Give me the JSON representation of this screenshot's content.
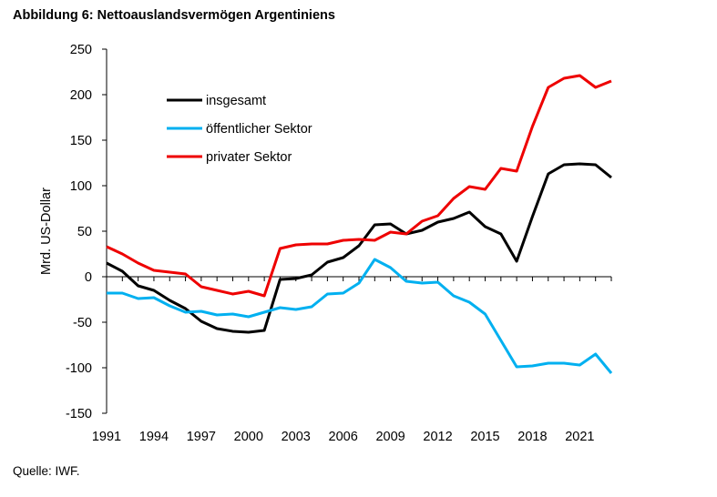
{
  "figure": {
    "title": "Abbildung 6: Nettoauslandsvermögen Argentiniens",
    "source": "Quelle: IWF."
  },
  "chart_data": {
    "type": "line",
    "title": "Abbildung 6: Nettoauslandsvermögen Argentiniens",
    "xlabel": "",
    "ylabel": "Mrd. US-Dollar",
    "xlim": [
      1991,
      2023
    ],
    "ylim": [
      -150,
      250
    ],
    "yticks": [
      -150,
      -100,
      -50,
      0,
      50,
      100,
      150,
      200,
      250
    ],
    "xticks": [
      1991,
      1994,
      1997,
      2000,
      2003,
      2006,
      2009,
      2012,
      2015,
      2018,
      2021
    ],
    "grid": false,
    "legend": "top-left",
    "x": [
      1991,
      1992,
      1993,
      1994,
      1995,
      1996,
      1997,
      1998,
      1999,
      2000,
      2001,
      2002,
      2003,
      2004,
      2005,
      2006,
      2007,
      2008,
      2009,
      2010,
      2011,
      2012,
      2013,
      2014,
      2015,
      2016,
      2017,
      2018,
      2019,
      2020,
      2021,
      2022,
      2023
    ],
    "series": [
      {
        "name": "insgesamt",
        "color": "#000000",
        "values": [
          15,
          6,
          -10,
          -15,
          -26,
          -35,
          -49,
          -57,
          -60,
          -61,
          -59,
          -3,
          -2,
          2,
          16,
          21,
          34,
          57,
          58,
          47,
          51,
          60,
          64,
          71,
          55,
          47,
          17,
          66,
          113,
          123,
          124,
          123,
          109
        ]
      },
      {
        "name": "öffentlicher Sektor",
        "color": "#00b0f0",
        "values": [
          -18,
          -18,
          -24,
          -23,
          -32,
          -39,
          -38,
          -42,
          -41,
          -44,
          -39,
          -34,
          -36,
          -33,
          -19,
          -18,
          -7,
          19,
          10,
          -5,
          -7,
          -6,
          -21,
          -28,
          -41,
          -70,
          -99,
          -98,
          -95,
          -95,
          -97,
          -85,
          -106
        ]
      },
      {
        "name": "privater Sektor",
        "color": "#ee0000",
        "values": [
          33,
          25,
          15,
          7,
          5,
          3,
          -11,
          -15,
          -19,
          -16,
          -21,
          31,
          35,
          36,
          36,
          40,
          41,
          40,
          49,
          47,
          61,
          67,
          86,
          99,
          96,
          119,
          116,
          165,
          208,
          218,
          221,
          208,
          215
        ]
      }
    ]
  }
}
